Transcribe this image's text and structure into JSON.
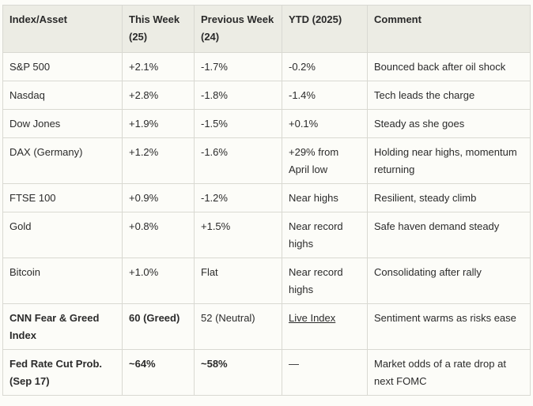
{
  "table": {
    "headers": [
      "Index/Asset",
      "This Week (25)",
      "Previous Week (24)",
      "YTD (2025)",
      "Comment"
    ],
    "rows": [
      {
        "asset": "S&P 500",
        "this_week": "+2.1%",
        "prev_week": "-1.7%",
        "ytd": "-0.2%",
        "comment": "Bounced back after oil shock"
      },
      {
        "asset": "Nasdaq",
        "this_week": "+2.8%",
        "prev_week": "-1.8%",
        "ytd": "-1.4%",
        "comment": "Tech leads the charge"
      },
      {
        "asset": "Dow Jones",
        "this_week": "+1.9%",
        "prev_week": "-1.5%",
        "ytd": "+0.1%",
        "comment": "Steady as she goes"
      },
      {
        "asset": "DAX (Germany)",
        "this_week": "+1.2%",
        "prev_week": "-1.6%",
        "ytd": "+29% from April low",
        "comment": "Holding near highs, momentum returning"
      },
      {
        "asset": "FTSE 100",
        "this_week": "+0.9%",
        "prev_week": "-1.2%",
        "ytd": "Near highs",
        "comment": "Resilient, steady climb"
      },
      {
        "asset": "Gold",
        "this_week": "+0.8%",
        "prev_week": "+1.5%",
        "ytd": "Near record highs",
        "comment": "Safe haven demand steady"
      },
      {
        "asset": "Bitcoin",
        "this_week": "+1.0%",
        "prev_week": "Flat",
        "ytd": "Near record highs",
        "comment": "Consolidating after rally"
      },
      {
        "asset": "CNN Fear & Greed Index",
        "this_week": "60 (Greed)",
        "prev_week": "52 (Neutral)",
        "ytd": "Live Index",
        "comment": "Sentiment warms as risks ease"
      },
      {
        "asset": "Fed Rate Cut Prob. (Sep 17)",
        "this_week": "~64%",
        "prev_week": "~58%",
        "ytd": "—",
        "comment": "Market odds of a rate drop at next FOMC"
      }
    ]
  }
}
